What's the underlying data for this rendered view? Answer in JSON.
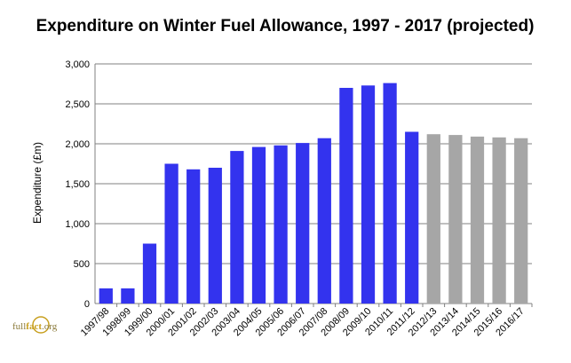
{
  "chart_data": {
    "type": "bar",
    "title": "Expenditure on Winter Fuel Allowance, 1997 - 2017 (projected)",
    "xlabel": "",
    "ylabel": "Expenditure (£m)",
    "ylim": [
      0,
      3000
    ],
    "yticks": [
      "0",
      "500",
      "1,000",
      "1,500",
      "2,000",
      "2,500",
      "3,000"
    ],
    "grid": true,
    "categories": [
      "1997/98",
      "1998/99",
      "1999/00",
      "2000/01",
      "2001/02",
      "2002/03",
      "2003/04",
      "2004/05",
      "2005/06",
      "2006/07",
      "2007/08",
      "2008/09",
      "2009/10",
      "2010/11",
      "2011/12",
      "2012/13",
      "2013/14",
      "2014/15",
      "2015/16",
      "2016/17"
    ],
    "values": [
      190,
      190,
      750,
      1750,
      1680,
      1700,
      1910,
      1960,
      1980,
      2010,
      2070,
      2700,
      2730,
      2760,
      2150,
      2120,
      2110,
      2090,
      2080,
      2070
    ],
    "projected_from_index": 15,
    "colors": {
      "actual": "#3333ee",
      "projected": "#a6a6a6",
      "grid": "#808080"
    }
  },
  "logo": {
    "part1": "full",
    "part2": "fact",
    "part3": ".org"
  }
}
